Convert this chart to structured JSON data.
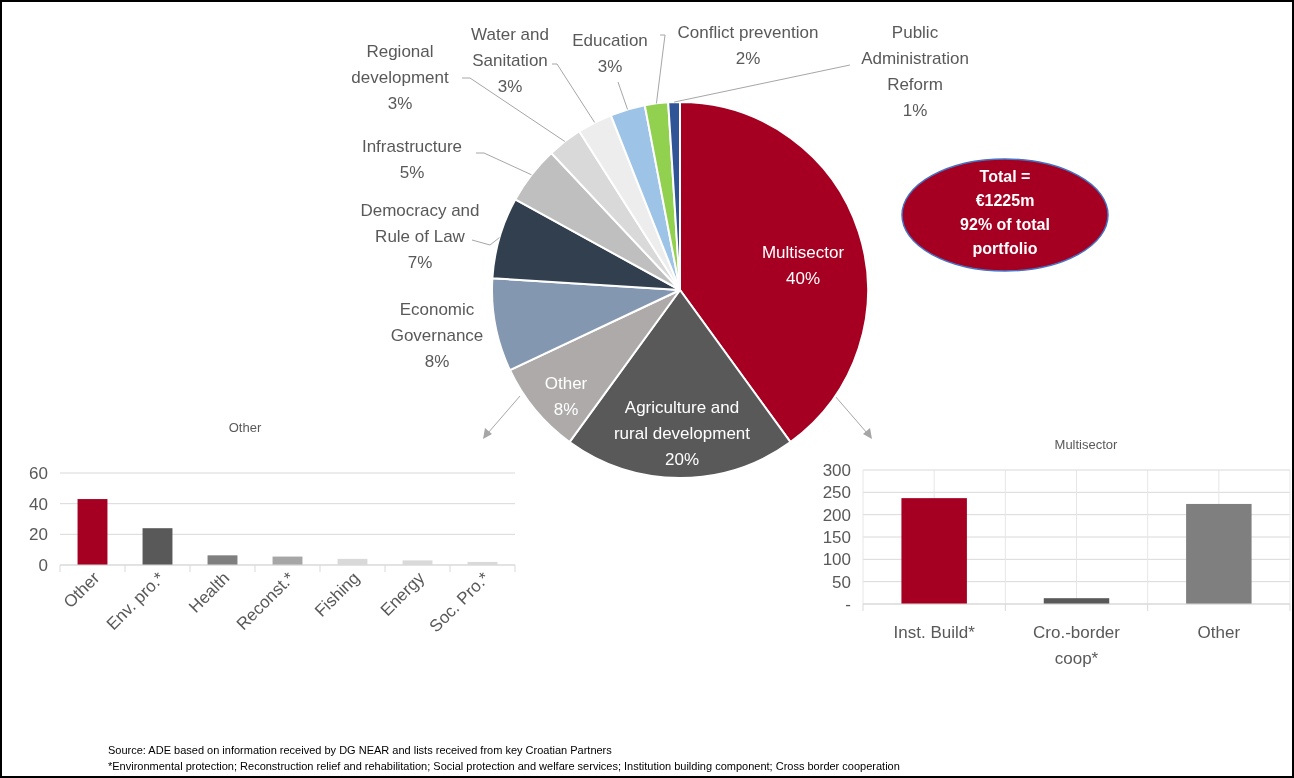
{
  "chart_data": [
    {
      "type": "pie",
      "categories": [
        "Multisector",
        "Agriculture and rural development",
        "Other",
        "Economic Governance",
        "Democracy and Rule of Law",
        "Infrastructure",
        "Regional development",
        "Water and Sanitation",
        "Education",
        "Conflict prevention",
        "Public Administration Reform"
      ],
      "values": [
        40,
        20,
        8,
        8,
        7,
        5,
        3,
        3,
        3,
        2,
        1
      ],
      "value_labels": [
        "40%",
        "20%",
        "8%",
        "8%",
        "7%",
        "5%",
        "3%",
        "3%",
        "3%",
        "2%",
        "1%"
      ],
      "colors": [
        "#a50021",
        "#595959",
        "#aeaaaa",
        "#8497b0",
        "#323f4f",
        "#bfbfbf",
        "#d9d9d9",
        "#ededed",
        "#9dc3e6",
        "#92d050",
        "#2f5597"
      ],
      "annotations": [
        "Total =\n€1225m\n92% of total\nportfolio",
        "Source: ADE based on information received by DG NEAR and lists received from key Croatian Partners",
        "*Environmental protection; Reconstruction relief and rehabilitation; Social protection and welfare services; Institution building component; Cross border cooperation"
      ]
    },
    {
      "type": "bar",
      "title": "Other",
      "categories": [
        "Other",
        "Env. pro.*",
        "Health",
        "Reconst.*",
        "Fishing",
        "Energy",
        "Soc. Pro.*"
      ],
      "values": [
        43,
        24,
        6.3,
        5.5,
        4,
        3,
        2
      ],
      "colors": [
        "#a50021",
        "#595959",
        "#7f7f7f",
        "#a6a6a6",
        "#d9d9d9",
        "#d9d9d9",
        "#d9d9d9"
      ],
      "ylim": [
        0,
        60
      ],
      "yticks": [
        0,
        20,
        40,
        60
      ],
      "grid": "y"
    },
    {
      "type": "bar",
      "title": "Multisector",
      "categories": [
        "Inst. Build*",
        "Cro.-border coop*",
        "Other"
      ],
      "values": [
        237,
        13,
        224
      ],
      "colors": [
        "#a50021",
        "#595959",
        "#7f7f7f"
      ],
      "ylim": [
        0,
        300
      ],
      "yticks": [
        {
          "value": 0,
          "label": "-"
        },
        50,
        100,
        150,
        200,
        250,
        300
      ],
      "grid": true
    }
  ]
}
